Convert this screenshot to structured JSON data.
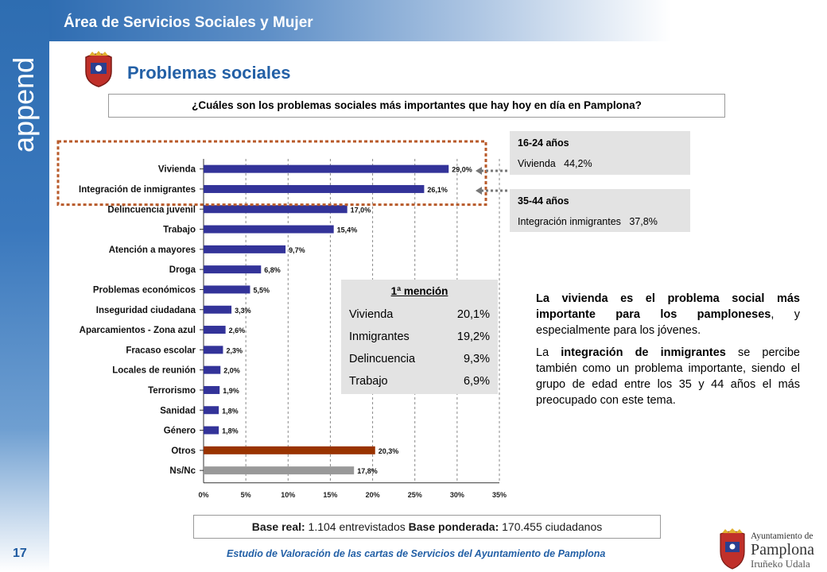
{
  "header": {
    "section_title": "Área de Servicios Sociales y Mujer",
    "side_logo_text": "append"
  },
  "page": {
    "title": "Problemas sociales",
    "number": "17"
  },
  "question": "¿Cuáles son los problemas sociales más importantes que hay hoy en día en Pamplona?",
  "age_boxes": [
    {
      "title": "16-24 años",
      "label": "Vivienda",
      "value": "44,2%"
    },
    {
      "title": "35-44 años",
      "label": "Integración inmigrantes",
      "value": "37,8%"
    }
  ],
  "mention_box": {
    "title": "1ª mención",
    "rows": [
      {
        "label": "Vivienda",
        "value": "20,1%"
      },
      {
        "label": "Inmigrantes",
        "value": "19,2%"
      },
      {
        "label": "Delincuencia",
        "value": "9,3%"
      },
      {
        "label": "Trabajo",
        "value": "6,9%"
      }
    ]
  },
  "description": {
    "p1_bold": "La vivienda es el problema social más importante para los pamploneses",
    "p1_rest": ", y especialmente para los jóvenes.",
    "p2_pre": "La ",
    "p2_bold": "integración de inmigrantes",
    "p2_rest": " se percibe también como un problema importante, siendo el grupo de edad entre los 35 y 44 años el más preocupado con este tema."
  },
  "base": {
    "label1": "Base real:",
    "value1": " 1.104 entrevistados ",
    "label2": "Base ponderada:",
    "value2": " 170.455 ciudadanos"
  },
  "footer": "Estudio de Valoración de las cartas de Servicios del Ayuntamiento de Pamplona",
  "ayuntamiento_logo": {
    "line1": "Ayuntamiento de",
    "line2": "Pamplona",
    "line3": "Iruñeko Udala"
  },
  "chart_data": {
    "type": "bar",
    "orientation": "horizontal",
    "categories": [
      "Vivienda",
      "Integración de inmigrantes",
      "Delincuencia juvenil",
      "Trabajo",
      "Atención a mayores",
      "Droga",
      "Problemas económicos",
      "Inseguridad ciudadana",
      "Aparcamientos - Zona azul",
      "Fracaso escolar",
      "Locales de reunión",
      "Terrorismo",
      "Sanidad",
      "Género",
      "Otros",
      "Ns/Nc"
    ],
    "values": [
      29.0,
      26.1,
      17.0,
      15.4,
      9.7,
      6.8,
      5.5,
      3.3,
      2.6,
      2.3,
      2.0,
      1.9,
      1.8,
      1.8,
      20.3,
      17.8
    ],
    "value_labels": [
      "29,0%",
      "26,1%",
      "17,0%",
      "15,4%",
      "9,7%",
      "6,8%",
      "5,5%",
      "3,3%",
      "2,6%",
      "2,3%",
      "2,0%",
      "1,9%",
      "1,8%",
      "1,8%",
      "20,3%",
      "17,8%"
    ],
    "bar_colors": [
      "#333399",
      "#333399",
      "#333399",
      "#333399",
      "#333399",
      "#333399",
      "#333399",
      "#333399",
      "#333399",
      "#333399",
      "#333399",
      "#333399",
      "#333399",
      "#333399",
      "#993300",
      "#999999"
    ],
    "xlim": [
      0,
      35
    ],
    "xticks": [
      0,
      5,
      10,
      15,
      20,
      25,
      30,
      35
    ],
    "xtick_labels": [
      "0%",
      "5%",
      "10%",
      "15%",
      "20%",
      "25%",
      "30%",
      "35%"
    ],
    "grid": true,
    "highlighted_categories": [
      "Vivienda",
      "Integración de inmigrantes"
    ],
    "highlight_color": "#b85a2a"
  },
  "colors": {
    "brand_blue": "#2360a6",
    "bar_main": "#333399",
    "bar_otros": "#993300",
    "bar_nsnc": "#999999"
  }
}
